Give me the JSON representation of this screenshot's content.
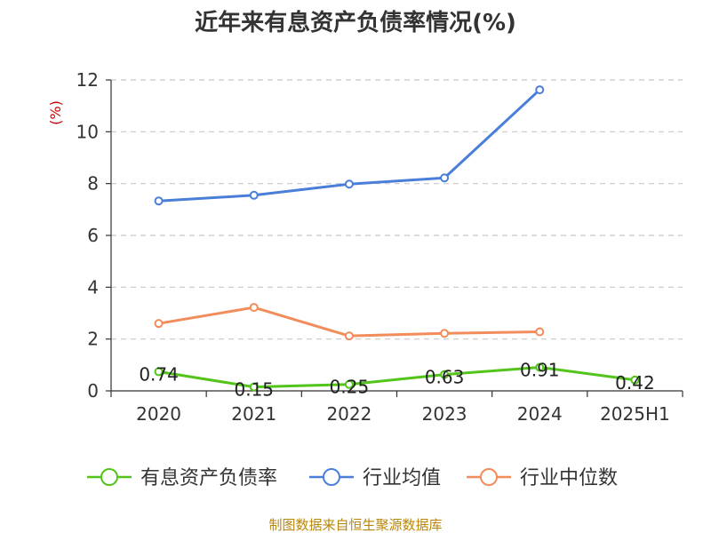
{
  "chart_data": {
    "type": "line",
    "title": "近年来有息资产负债率情况(%)",
    "ylabel": "(%)",
    "categories": [
      "2020",
      "2021",
      "2022",
      "2023",
      "2024",
      "2025H1"
    ],
    "y_ticks": [
      "0",
      "2",
      "4",
      "6",
      "8",
      "10",
      "12"
    ],
    "ylim": [
      0,
      12
    ],
    "grid": true,
    "legend_position": "bottom",
    "series": [
      {
        "name": "有息资产负债率",
        "color": "#52c41a",
        "values": [
          0.74,
          0.15,
          0.25,
          0.63,
          0.91,
          0.42
        ],
        "labels": [
          "0.74",
          "0.15",
          "0.25",
          "0.63",
          "0.91",
          "0.42"
        ]
      },
      {
        "name": "行业均值",
        "color": "#4a7fd9",
        "values": [
          7.33,
          7.55,
          7.98,
          8.22,
          11.62,
          null
        ]
      },
      {
        "name": "行业中位数",
        "color": "#f28c5a",
        "values": [
          2.6,
          3.22,
          2.12,
          2.22,
          2.28,
          null
        ]
      }
    ],
    "source": "制图数据来自恒生聚源数据库"
  }
}
